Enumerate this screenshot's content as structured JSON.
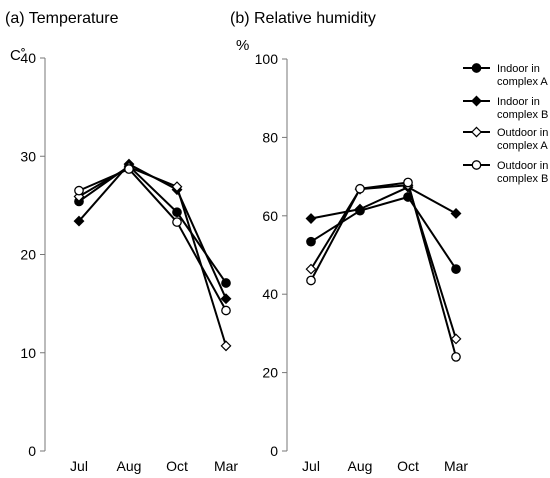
{
  "chart_data": [
    {
      "type": "line",
      "title": "(a) Temperature",
      "ylabel": "C˚",
      "categories": [
        "Jul",
        "Aug",
        "Oct",
        "Mar"
      ],
      "ylim": [
        0,
        40
      ],
      "yticks": [
        0,
        10,
        20,
        30,
        40
      ],
      "grid": false,
      "series": [
        {
          "name": "Indoor in complex A",
          "marker": "filled-circle",
          "values": [
            25.4,
            29.0,
            24.3,
            17.1
          ]
        },
        {
          "name": "Indoor in complex B",
          "marker": "filled-diamond",
          "values": [
            23.4,
            29.2,
            26.6,
            15.5
          ]
        },
        {
          "name": "Outdoor in complex A",
          "marker": "open-diamond",
          "values": [
            25.9,
            28.9,
            26.9,
            10.7
          ]
        },
        {
          "name": "Outdoor in complex B",
          "marker": "open-circle",
          "values": [
            26.5,
            28.7,
            23.3,
            14.3
          ]
        }
      ]
    },
    {
      "type": "line",
      "title": "(b) Relative humidity",
      "ylabel": "%",
      "categories": [
        "Jul",
        "Aug",
        "Oct",
        "Mar"
      ],
      "ylim": [
        0,
        100
      ],
      "yticks": [
        0,
        20,
        40,
        60,
        80,
        100
      ],
      "grid": false,
      "legend": "right",
      "series": [
        {
          "name": "Indoor in complex A",
          "marker": "filled-circle",
          "values": [
            53.4,
            61.3,
            64.8,
            46.4
          ]
        },
        {
          "name": "Indoor in complex B",
          "marker": "filled-diamond",
          "values": [
            59.3,
            61.7,
            67.3,
            60.6
          ]
        },
        {
          "name": "Outdoor in complex A",
          "marker": "open-diamond",
          "values": [
            46.4,
            66.8,
            67.8,
            28.6
          ]
        },
        {
          "name": "Outdoor in complex B",
          "marker": "open-circle",
          "values": [
            43.5,
            66.9,
            68.5,
            24.0
          ]
        }
      ]
    }
  ],
  "legend": [
    {
      "line1": "Indoor in",
      "line2": "complex A",
      "marker": "filled-circle"
    },
    {
      "line1": "Indoor in",
      "line2": "complex B",
      "marker": "filled-diamond"
    },
    {
      "line1": "Outdoor in",
      "line2": "complex A",
      "marker": "open-diamond"
    },
    {
      "line1": "Outdoor in",
      "line2": "complex B",
      "marker": "open-circle"
    }
  ]
}
